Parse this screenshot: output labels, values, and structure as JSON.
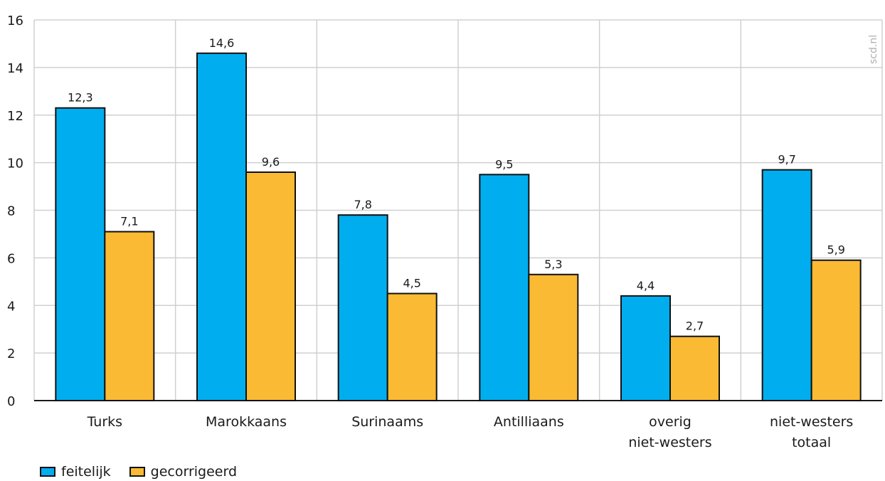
{
  "chart_data": {
    "type": "bar",
    "categories": [
      [
        "Turks"
      ],
      [
        "Marokkaans"
      ],
      [
        "Surinaams"
      ],
      [
        "Antilliaans"
      ],
      [
        "overig",
        "niet-westers"
      ],
      [
        "niet-westers",
        "totaal"
      ]
    ],
    "series": [
      {
        "name": "feitelijk",
        "color": "#00aeef",
        "values": [
          12.3,
          14.6,
          7.8,
          9.5,
          4.4,
          9.7
        ],
        "labels": [
          "12,3",
          "14,6",
          "7,8",
          "9,5",
          "4,4",
          "9,7"
        ]
      },
      {
        "name": "gecorrigeerd",
        "color": "#fbba33",
        "values": [
          7.1,
          9.6,
          4.5,
          5.3,
          2.7,
          5.9
        ],
        "labels": [
          "7,1",
          "9,6",
          "4,5",
          "5,3",
          "2,7",
          "5,9"
        ]
      }
    ],
    "ylim": [
      0,
      16
    ],
    "yticks": [
      0,
      2,
      4,
      6,
      8,
      10,
      12,
      14,
      16
    ],
    "ytick_labels": [
      "0",
      "2",
      "4",
      "6",
      "8",
      "10",
      "12",
      "14",
      "16"
    ],
    "grid": true,
    "legend_position": "bottom-left",
    "watermark": "scd.nl"
  }
}
